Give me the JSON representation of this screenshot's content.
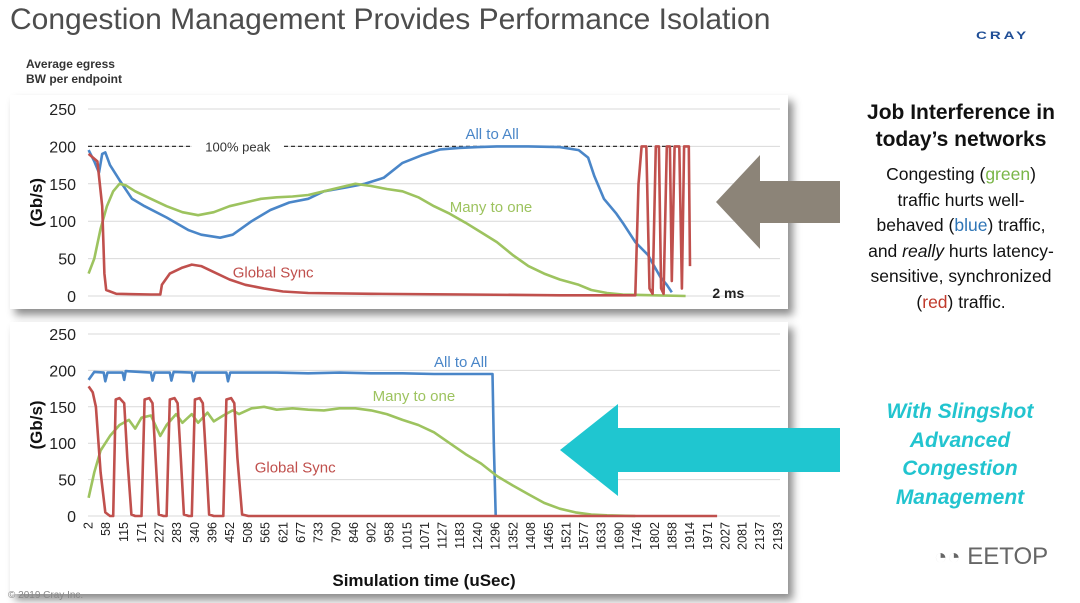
{
  "slide": {
    "title": "Congestion Management Provides Performance Isolation",
    "logo": "CRAY",
    "copyright": "© 2019 Cray Inc.",
    "y_header": [
      "Average egress",
      "BW per endpoint"
    ],
    "watermark": "EETOP"
  },
  "right_panel": {
    "heading_lines": [
      "Job Interference in",
      "today’s networks"
    ],
    "body_lines": [
      [
        {
          "t": "Congesting ("
        },
        {
          "t": "green",
          "c": "green"
        },
        {
          "t": ")"
        }
      ],
      [
        {
          "t": "traffic hurts well-"
        }
      ],
      [
        {
          "t": "behaved ("
        },
        {
          "t": "blue",
          "c": "blue"
        },
        {
          "t": ") traffic,"
        }
      ],
      [
        {
          "t": "and "
        },
        {
          "t": "really",
          "i": true
        },
        {
          "t": " hurts latency-"
        }
      ],
      [
        {
          "t": "sensitive, synchronized"
        }
      ],
      [
        {
          "t": "("
        },
        {
          "t": "red",
          "c": "red"
        },
        {
          "t": ") traffic."
        }
      ]
    ],
    "slingshot_lines": [
      "With Slingshot",
      "Advanced",
      "Congestion",
      "Management"
    ]
  },
  "colors": {
    "all_to_all": "#4a86c8",
    "many_to_one": "#9dc35f",
    "global_sync": "#c0504d",
    "arrow_top": "#8c8478",
    "arrow_bottom": "#1fc6d0",
    "heading": "#111111",
    "slingshot_text": "#22c4cf"
  },
  "chart_data": [
    {
      "type": "line",
      "ylabel": "(Gb/s)",
      "ylim": [
        0,
        250
      ],
      "yticks": [
        0,
        50,
        100,
        150,
        200,
        250
      ],
      "xlim": [
        0,
        2200
      ],
      "grid": true,
      "peak_line": {
        "y": 200,
        "label": "100% peak"
      },
      "x_end_annotation": "2 ms",
      "series": [
        {
          "name": "All to All",
          "color_key": "all_to_all",
          "points": [
            [
              2,
              195
            ],
            [
              20,
              180
            ],
            [
              35,
              165
            ],
            [
              45,
              190
            ],
            [
              55,
              192
            ],
            [
              70,
              175
            ],
            [
              100,
              155
            ],
            [
              140,
              130
            ],
            [
              180,
              120
            ],
            [
              250,
              105
            ],
            [
              320,
              88
            ],
            [
              360,
              82
            ],
            [
              420,
              78
            ],
            [
              460,
              82
            ],
            [
              520,
              100
            ],
            [
              580,
              115
            ],
            [
              640,
              125
            ],
            [
              700,
              130
            ],
            [
              750,
              140
            ],
            [
              820,
              145
            ],
            [
              880,
              150
            ],
            [
              940,
              158
            ],
            [
              1000,
              178
            ],
            [
              1060,
              188
            ],
            [
              1120,
              196
            ],
            [
              1180,
              198
            ],
            [
              1240,
              199
            ],
            [
              1300,
              200
            ],
            [
              1400,
              200
            ],
            [
              1500,
              199
            ],
            [
              1560,
              195
            ],
            [
              1590,
              185
            ],
            [
              1610,
              160
            ],
            [
              1640,
              130
            ],
            [
              1680,
              110
            ],
            [
              1700,
              98
            ],
            [
              1740,
              72
            ],
            [
              1780,
              55
            ],
            [
              1800,
              40
            ],
            [
              1820,
              25
            ],
            [
              1840,
              15
            ],
            [
              1856,
              5
            ]
          ]
        },
        {
          "name": "Many to one",
          "color_key": "many_to_one",
          "points": [
            [
              2,
              30
            ],
            [
              20,
              50
            ],
            [
              40,
              90
            ],
            [
              60,
              120
            ],
            [
              80,
              140
            ],
            [
              100,
              150
            ],
            [
              120,
              148
            ],
            [
              150,
              140
            ],
            [
              200,
              130
            ],
            [
              250,
              120
            ],
            [
              300,
              112
            ],
            [
              350,
              108
            ],
            [
              400,
              112
            ],
            [
              450,
              120
            ],
            [
              500,
              125
            ],
            [
              550,
              130
            ],
            [
              600,
              132
            ],
            [
              650,
              133
            ],
            [
              700,
              135
            ],
            [
              750,
              140
            ],
            [
              800,
              145
            ],
            [
              850,
              150
            ],
            [
              900,
              147
            ],
            [
              950,
              143
            ],
            [
              1000,
              140
            ],
            [
              1050,
              132
            ],
            [
              1100,
              120
            ],
            [
              1150,
              110
            ],
            [
              1200,
              98
            ],
            [
              1250,
              85
            ],
            [
              1300,
              72
            ],
            [
              1350,
              55
            ],
            [
              1400,
              40
            ],
            [
              1450,
              30
            ],
            [
              1500,
              22
            ],
            [
              1560,
              15
            ],
            [
              1600,
              8
            ],
            [
              1650,
              4
            ],
            [
              1700,
              2
            ],
            [
              1800,
              1
            ],
            [
              1900,
              0
            ]
          ]
        },
        {
          "name": "Global Sync",
          "color_key": "global_sync",
          "points": [
            [
              2,
              190
            ],
            [
              30,
              180
            ],
            [
              45,
              120
            ],
            [
              52,
              30
            ],
            [
              58,
              8
            ],
            [
              90,
              3
            ],
            [
              200,
              2
            ],
            [
              230,
              2
            ],
            [
              235,
              15
            ],
            [
              260,
              30
            ],
            [
              300,
              38
            ],
            [
              330,
              42
            ],
            [
              360,
              40
            ],
            [
              400,
              32
            ],
            [
              450,
              22
            ],
            [
              500,
              15
            ],
            [
              560,
              10
            ],
            [
              620,
              6
            ],
            [
              700,
              4
            ],
            [
              900,
              3
            ],
            [
              1200,
              2
            ],
            [
              1500,
              1
            ],
            [
              1740,
              1
            ],
            [
              1750,
              150
            ],
            [
              1760,
              200
            ],
            [
              1775,
              200
            ],
            [
              1785,
              10
            ],
            [
              1795,
              3
            ],
            [
              1805,
              200
            ],
            [
              1815,
              200
            ],
            [
              1822,
              10
            ],
            [
              1830,
              3
            ],
            [
              1840,
              200
            ],
            [
              1850,
              200
            ],
            [
              1856,
              20
            ],
            [
              1865,
              200
            ],
            [
              1880,
              200
            ],
            [
              1888,
              10
            ],
            [
              1895,
              200
            ],
            [
              1910,
              200
            ],
            [
              1914,
              40
            ]
          ]
        }
      ]
    },
    {
      "type": "line",
      "ylabel": "(Gb/s)",
      "xlabel": "Simulation time (uSec)",
      "ylim": [
        0,
        250
      ],
      "yticks": [
        0,
        50,
        100,
        150,
        200,
        250
      ],
      "xlim": [
        0,
        2200
      ],
      "grid": true,
      "x_categories": [
        "2",
        "58",
        "115",
        "171",
        "227",
        "283",
        "340",
        "396",
        "452",
        "508",
        "565",
        "621",
        "677",
        "733",
        "790",
        "846",
        "902",
        "958",
        "1015",
        "1071",
        "1127",
        "1183",
        "1240",
        "1296",
        "1352",
        "1408",
        "1465",
        "1521",
        "1577",
        "1633",
        "1690",
        "1746",
        "1802",
        "1858",
        "1914",
        "1971",
        "2027",
        "2081",
        "2137",
        "2193"
      ],
      "series": [
        {
          "name": "All to All",
          "color_key": "all_to_all",
          "points": [
            [
              2,
              187
            ],
            [
              20,
              198
            ],
            [
              50,
              197
            ],
            [
              55,
              185
            ],
            [
              62,
              197
            ],
            [
              110,
              197
            ],
            [
              115,
              187
            ],
            [
              120,
              199
            ],
            [
              200,
              197
            ],
            [
              205,
              186
            ],
            [
              212,
              197
            ],
            [
              260,
              197
            ],
            [
              265,
              186
            ],
            [
              272,
              198
            ],
            [
              330,
              197
            ],
            [
              335,
              185
            ],
            [
              342,
              197
            ],
            [
              440,
              197
            ],
            [
              445,
              185
            ],
            [
              452,
              197
            ],
            [
              500,
              197
            ],
            [
              600,
              197
            ],
            [
              700,
              196
            ],
            [
              800,
              197
            ],
            [
              900,
              196
            ],
            [
              1000,
              196
            ],
            [
              1100,
              195
            ],
            [
              1200,
              195
            ],
            [
              1260,
              195
            ],
            [
              1286,
              195
            ],
            [
              1290,
              100
            ],
            [
              1296,
              0
            ]
          ]
        },
        {
          "name": "Many to one",
          "color_key": "many_to_one",
          "points": [
            [
              2,
              25
            ],
            [
              20,
              60
            ],
            [
              40,
              90
            ],
            [
              70,
              110
            ],
            [
              100,
              125
            ],
            [
              130,
              132
            ],
            [
              150,
              120
            ],
            [
              170,
              135
            ],
            [
              200,
              138
            ],
            [
              230,
              110
            ],
            [
              250,
              125
            ],
            [
              280,
              140
            ],
            [
              300,
              128
            ],
            [
              330,
              140
            ],
            [
              350,
              128
            ],
            [
              380,
              142
            ],
            [
              400,
              130
            ],
            [
              430,
              138
            ],
            [
              460,
              145
            ],
            [
              480,
              140
            ],
            [
              520,
              148
            ],
            [
              560,
              150
            ],
            [
              600,
              146
            ],
            [
              650,
              148
            ],
            [
              700,
              146
            ],
            [
              750,
              145
            ],
            [
              800,
              148
            ],
            [
              850,
              148
            ],
            [
              900,
              145
            ],
            [
              950,
              140
            ],
            [
              1000,
              132
            ],
            [
              1050,
              125
            ],
            [
              1100,
              115
            ],
            [
              1150,
              100
            ],
            [
              1200,
              85
            ],
            [
              1250,
              72
            ],
            [
              1300,
              55
            ],
            [
              1350,
              42
            ],
            [
              1400,
              30
            ],
            [
              1450,
              18
            ],
            [
              1500,
              10
            ],
            [
              1550,
              5
            ],
            [
              1600,
              2
            ],
            [
              1650,
              1
            ],
            [
              1740,
              0
            ]
          ]
        },
        {
          "name": "Global Sync",
          "color_key": "global_sync",
          "points": [
            [
              2,
              178
            ],
            [
              15,
              170
            ],
            [
              25,
              150
            ],
            [
              40,
              60
            ],
            [
              55,
              5
            ],
            [
              70,
              0
            ],
            [
              80,
              0
            ],
            [
              88,
              160
            ],
            [
              100,
              162
            ],
            [
              115,
              155
            ],
            [
              125,
              80
            ],
            [
              138,
              2
            ],
            [
              150,
              0
            ],
            [
              170,
              0
            ],
            [
              180,
              160
            ],
            [
              195,
              162
            ],
            [
              205,
              155
            ],
            [
              215,
              80
            ],
            [
              225,
              2
            ],
            [
              240,
              0
            ],
            [
              250,
              0
            ],
            [
              260,
              160
            ],
            [
              275,
              162
            ],
            [
              285,
              155
            ],
            [
              295,
              80
            ],
            [
              305,
              2
            ],
            [
              320,
              0
            ],
            [
              330,
              0
            ],
            [
              340,
              160
            ],
            [
              355,
              162
            ],
            [
              365,
              155
            ],
            [
              375,
              80
            ],
            [
              385,
              2
            ],
            [
              400,
              0
            ],
            [
              430,
              0
            ],
            [
              440,
              160
            ],
            [
              455,
              162
            ],
            [
              465,
              155
            ],
            [
              475,
              80
            ],
            [
              490,
              2
            ],
            [
              510,
              0
            ],
            [
              600,
              0
            ],
            [
              800,
              0
            ],
            [
              1200,
              0
            ],
            [
              1800,
              0
            ],
            [
              2000,
              0
            ]
          ]
        }
      ],
      "annotations": []
    }
  ]
}
